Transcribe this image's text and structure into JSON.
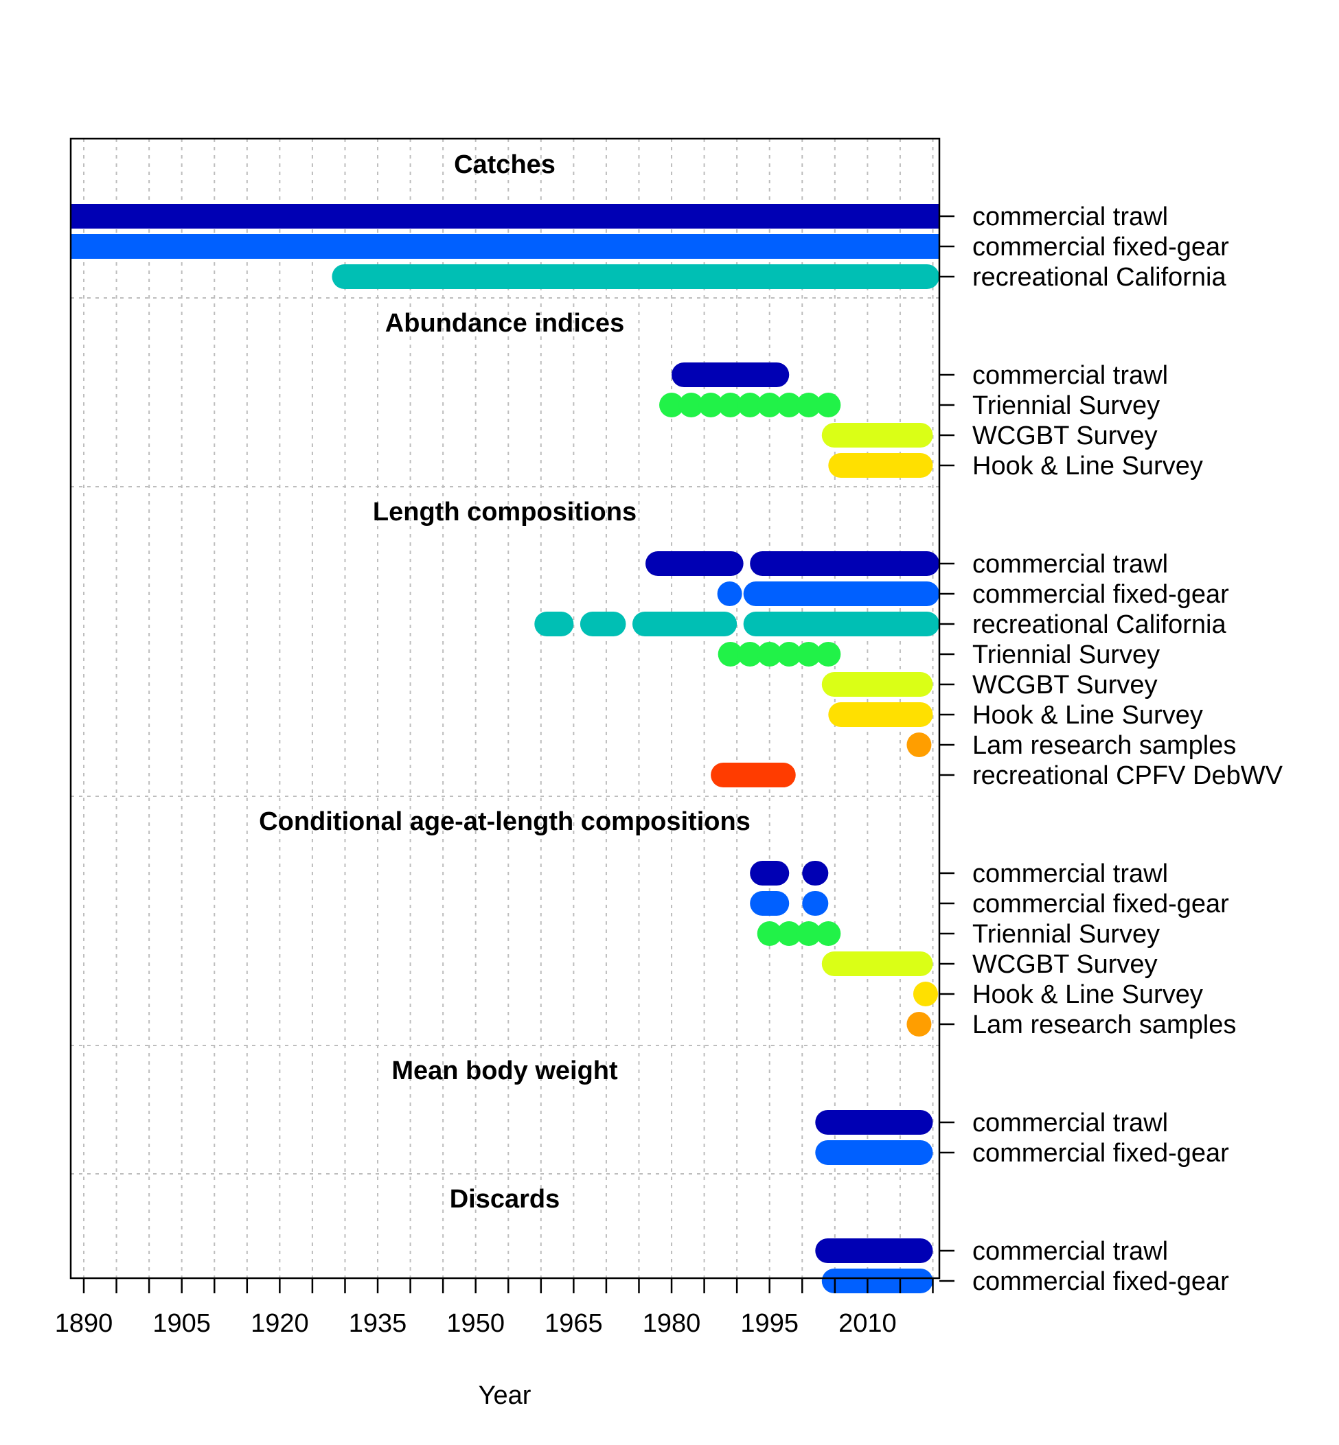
{
  "chart_data": {
    "type": "timeline",
    "xlabel": "Year",
    "xlim": [
      1888,
      2021
    ],
    "x_ticks": [
      1890,
      1895,
      1900,
      1905,
      1910,
      1915,
      1920,
      1925,
      1930,
      1935,
      1940,
      1945,
      1950,
      1955,
      1960,
      1965,
      1970,
      1975,
      1980,
      1985,
      1990,
      1995,
      2000,
      2005,
      2010,
      2015,
      2020
    ],
    "x_tick_labels": [
      "1890",
      "1905",
      "1920",
      "1935",
      "1950",
      "1965",
      "1980",
      "1995",
      "2010"
    ],
    "x_tick_label_values": [
      1890,
      1905,
      1920,
      1935,
      1950,
      1965,
      1980,
      1995,
      2010
    ],
    "grid": true,
    "fleet_colors": {
      "commercial trawl": "#0000B4",
      "commercial fixed-gear": "#0060FF",
      "recreational California": "#00BFB4",
      "Triennial Survey": "#21F248",
      "WCGBT Survey": "#DAFF16",
      "Hook & Line Survey": "#FFE000",
      "Lam research samples": "#FF9E00",
      "recreational CPFV DebWV": "#FF3C00"
    },
    "sections": [
      {
        "title": "Catches",
        "rows": [
          {
            "label": "commercial trawl",
            "segments": [
              [
                1888,
                2021
              ]
            ]
          },
          {
            "label": "commercial fixed-gear",
            "segments": [
              [
                1888,
                2021
              ]
            ]
          },
          {
            "label": "recreational California",
            "segments": [
              [
                1928,
                2021
              ]
            ]
          }
        ]
      },
      {
        "title": "Abundance indices",
        "rows": [
          {
            "label": "commercial trawl",
            "segments": [
              [
                1980,
                1998
              ]
            ]
          },
          {
            "label": "Triennial Survey",
            "points": [
              1980,
              1983,
              1986,
              1989,
              1992,
              1995,
              1998,
              2001,
              2004
            ]
          },
          {
            "label": "WCGBT Survey",
            "segments": [
              [
                2003,
                2020
              ]
            ]
          },
          {
            "label": "Hook & Line Survey",
            "segments": [
              [
                2004,
                2020
              ]
            ]
          }
        ]
      },
      {
        "title": "Length compositions",
        "rows": [
          {
            "label": "commercial trawl",
            "segments": [
              [
                1976,
                1991
              ],
              [
                1992,
                2021
              ]
            ]
          },
          {
            "label": "commercial fixed-gear",
            "segments": [
              [
                1987,
                1990
              ],
              [
                1991,
                2021
              ]
            ]
          },
          {
            "label": "recreational California",
            "segments": [
              [
                1959,
                1965
              ],
              [
                1966,
                1973
              ],
              [
                1974,
                1990
              ],
              [
                1991,
                2021
              ]
            ]
          },
          {
            "label": "Triennial Survey",
            "points": [
              1989,
              1992,
              1995,
              1998,
              2001,
              2004
            ]
          },
          {
            "label": "WCGBT Survey",
            "segments": [
              [
                2003,
                2020
              ]
            ]
          },
          {
            "label": "Hook & Line Survey",
            "segments": [
              [
                2004,
                2020
              ]
            ]
          },
          {
            "label": "Lam research samples",
            "segments": [
              [
                2016,
                2017
              ]
            ]
          },
          {
            "label": "recreational CPFV DebWV",
            "segments": [
              [
                1986,
                1999
              ]
            ]
          }
        ]
      },
      {
        "title": "Conditional age-at-length compositions",
        "rows": [
          {
            "label": "commercial trawl",
            "segments": [
              [
                1992,
                1998
              ],
              [
                2000,
                2004
              ]
            ]
          },
          {
            "label": "commercial fixed-gear",
            "segments": [
              [
                1992,
                1998
              ],
              [
                2000,
                2004
              ]
            ]
          },
          {
            "label": "Triennial Survey",
            "points": [
              1995,
              1998,
              2001,
              2004
            ]
          },
          {
            "label": "WCGBT Survey",
            "segments": [
              [
                2003,
                2020
              ]
            ]
          },
          {
            "label": "Hook & Line Survey",
            "segments": [
              [
                2017,
                2020
              ]
            ]
          },
          {
            "label": "Lam research samples",
            "segments": [
              [
                2016,
                2017
              ]
            ]
          }
        ]
      },
      {
        "title": "Mean body weight",
        "rows": [
          {
            "label": "commercial trawl",
            "segments": [
              [
                2002,
                2020
              ]
            ]
          },
          {
            "label": "commercial fixed-gear",
            "segments": [
              [
                2002,
                2020
              ]
            ]
          }
        ]
      },
      {
        "title": "Discards",
        "rows": [
          {
            "label": "commercial trawl",
            "segments": [
              [
                2002,
                2020
              ]
            ]
          },
          {
            "label": "commercial fixed-gear",
            "segments": [
              [
                2003,
                2020
              ]
            ]
          }
        ]
      }
    ]
  }
}
